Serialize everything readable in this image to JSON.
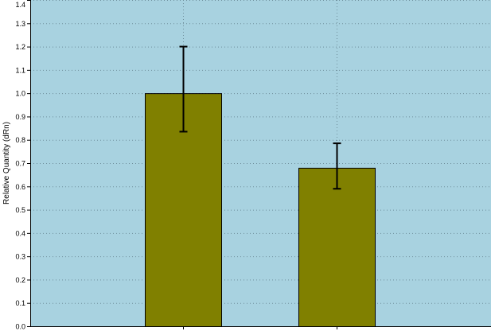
{
  "chart_data": {
    "type": "bar",
    "title": "",
    "xlabel": "",
    "ylabel": "Relative Quantity (dRn)",
    "ylim": [
      0.0,
      1.4
    ],
    "yticks": [
      0.0,
      0.1,
      0.2,
      0.3,
      0.4,
      0.5,
      0.6,
      0.7,
      0.8,
      0.9,
      1.0,
      1.1,
      1.2,
      1.3,
      1.4
    ],
    "ytick_labels": [
      "0.0",
      "0.1",
      "0.2",
      "0.3",
      "0.4",
      "0.5",
      "0.6",
      "0.7",
      "0.8",
      "0.9",
      "1.0",
      "1.1",
      "1.2",
      "1.3",
      "1.4"
    ],
    "categories": [
      "",
      ""
    ],
    "values": [
      1.0,
      0.68
    ],
    "error_low": [
      0.835,
      0.59
    ],
    "error_high": [
      1.2,
      0.785
    ],
    "grid": "horizontal dotted, vertical dotted at bar centers",
    "legend": "none",
    "colors": {
      "plot_background": "#a8d2e0",
      "bar_fill": "#808000",
      "bar_stroke": "#000000",
      "grid": "#6f8f9c",
      "error_bar": "#000000",
      "axis": "#000000",
      "text": "#000000"
    }
  }
}
